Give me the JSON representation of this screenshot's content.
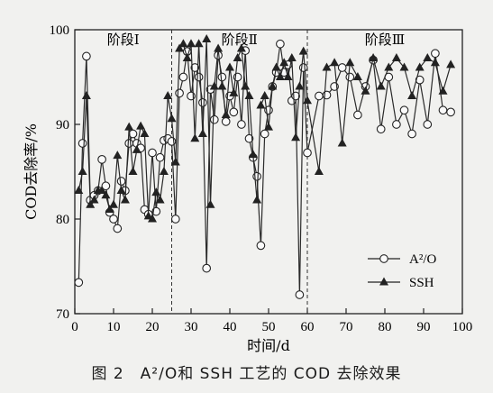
{
  "caption": "图 2　A²/O和 SSH 工艺的 COD 去除效果",
  "chart_data": {
    "type": "line",
    "xlabel": "时间/d",
    "ylabel": "COD去除率/%",
    "xlim": [
      0,
      100
    ],
    "ylim": [
      70,
      100
    ],
    "xticks": [
      0,
      10,
      20,
      30,
      40,
      50,
      60,
      70,
      80,
      90,
      100
    ],
    "yticks": [
      70,
      80,
      90,
      100
    ],
    "grid": false,
    "legend_position": "bottom-right",
    "stage_boundaries": [
      25,
      60
    ],
    "stages": [
      {
        "label": "阶段Ⅰ",
        "x_center": 12.5
      },
      {
        "label": "阶段Ⅱ",
        "x_center": 42.5
      },
      {
        "label": "阶段Ⅲ",
        "x_center": 80
      }
    ],
    "series": [
      {
        "name": "A²/O",
        "marker": "circle",
        "x": [
          1,
          2,
          3,
          4,
          5,
          6,
          7,
          8,
          9,
          10,
          11,
          12,
          13,
          14,
          15,
          16,
          17,
          18,
          19,
          20,
          21,
          22,
          23,
          24,
          25,
          26,
          27,
          28,
          29,
          30,
          31,
          32,
          33,
          34,
          35,
          36,
          37,
          38,
          39,
          40,
          41,
          42,
          43,
          44,
          45,
          46,
          47,
          48,
          49,
          50,
          51,
          52,
          53,
          54,
          55,
          56,
          57,
          58,
          59,
          60,
          63,
          65,
          67,
          69,
          71,
          73,
          75,
          77,
          79,
          81,
          83,
          85,
          87,
          89,
          91,
          93,
          95,
          97
        ],
        "y": [
          73.3,
          88,
          97.2,
          82,
          82.5,
          83,
          86.3,
          83.5,
          80.7,
          80,
          79,
          84,
          83,
          88,
          89,
          88,
          87.5,
          81,
          80.5,
          87,
          80.8,
          86.5,
          88.3,
          88.5,
          88.2,
          80,
          93.3,
          95,
          97.7,
          93,
          96,
          95,
          92.3,
          74.8,
          93.7,
          90.5,
          97.3,
          95,
          90.3,
          93,
          91.3,
          95,
          90,
          97.8,
          88.5,
          86.5,
          84.5,
          77.2,
          89,
          91.5,
          94,
          95.5,
          98.5,
          95.5,
          96.3,
          92.5,
          93,
          72,
          96,
          87,
          93,
          93.1,
          94,
          96,
          95,
          91,
          94,
          96.8,
          89.5,
          95,
          90,
          91.5,
          89,
          94.7,
          90,
          97.5,
          91.5,
          91.3
        ]
      },
      {
        "name": "SSH",
        "marker": "triangle",
        "x": [
          1,
          2,
          3,
          4,
          5,
          6,
          7,
          8,
          9,
          10,
          11,
          12,
          13,
          14,
          15,
          16,
          17,
          18,
          19,
          20,
          21,
          22,
          23,
          24,
          25,
          26,
          27,
          28,
          29,
          30,
          31,
          32,
          33,
          34,
          35,
          36,
          37,
          38,
          39,
          40,
          41,
          42,
          43,
          44,
          45,
          46,
          47,
          48,
          49,
          50,
          51,
          52,
          53,
          54,
          55,
          56,
          57,
          58,
          59,
          60,
          63,
          65,
          67,
          69,
          71,
          73,
          75,
          77,
          79,
          81,
          83,
          85,
          87,
          89,
          91,
          93,
          95,
          97
        ],
        "y": [
          83,
          85,
          93,
          81.5,
          82,
          83,
          83,
          82.5,
          81,
          81.5,
          86.7,
          83,
          82,
          89.7,
          85,
          87.3,
          89.8,
          89,
          80.3,
          80,
          82.8,
          82,
          85,
          93,
          90.6,
          86,
          98,
          98.5,
          97,
          98.5,
          88.5,
          98.5,
          89,
          99,
          81.5,
          94,
          98,
          94,
          91,
          96,
          93.3,
          97,
          98,
          94,
          93,
          86.8,
          82,
          92,
          93,
          89.7,
          94,
          96,
          95,
          96.5,
          95,
          97,
          88.6,
          94,
          97.7,
          92.5,
          85,
          96,
          96.5,
          88,
          96.5,
          95,
          93.5,
          97,
          94,
          96,
          97,
          96,
          93,
          96,
          97,
          96.5,
          93.5,
          96.3
        ]
      }
    ]
  }
}
